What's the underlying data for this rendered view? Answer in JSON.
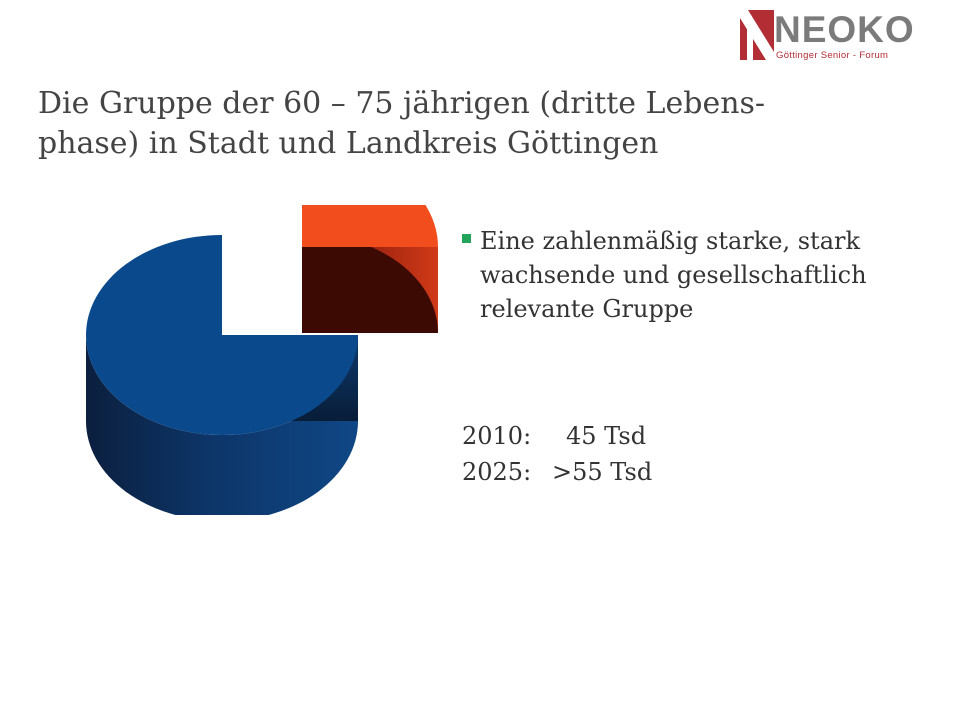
{
  "logo": {
    "name": "NEOKO",
    "subtitle": "Göttinger Senior - Forum"
  },
  "title": "Die Gruppe der 60 – 75 jährigen (dritte Lebens-phase) in Stadt und Landkreis Göttingen",
  "bullet": {
    "text": "Eine zahlenmäßig starke, stark wachsende und gesellschaftlich relevante Gruppe"
  },
  "stats": [
    {
      "year": "2010:",
      "value": "45 Tsd"
    },
    {
      "year": "2025:",
      "value": ">55 Tsd"
    }
  ],
  "colors": {
    "blue_top": "#0a4a8c",
    "red_top": "#f24d1c",
    "accent_green": "#22a55a",
    "logo_red": "#b32d35"
  },
  "chart_data": {
    "type": "pie",
    "style": "3d-exploded",
    "slices": [
      {
        "label": "",
        "value": 75,
        "color": "#0a4a8c"
      },
      {
        "label": "",
        "value": 25,
        "color": "#f24d1c"
      }
    ]
  }
}
